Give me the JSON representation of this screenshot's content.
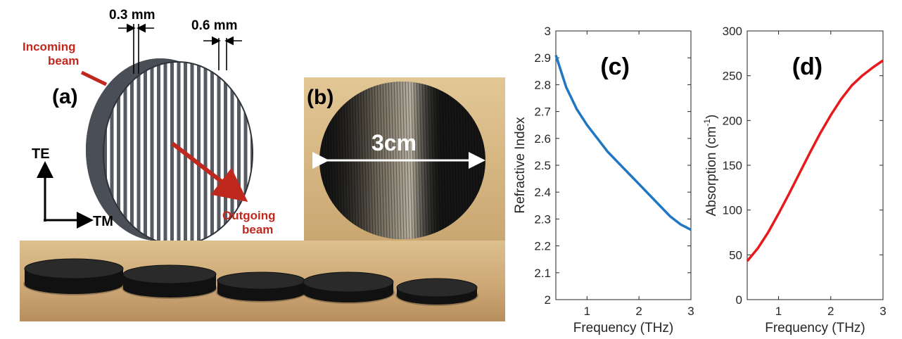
{
  "diagram": {
    "label": "(a)",
    "dim_small": "0.3 mm",
    "dim_large": "0.6 mm",
    "incoming_line1": "Incoming",
    "incoming_line2": "beam",
    "outgoing_line1": "Outgoing",
    "outgoing_line2": "beam",
    "axis_te": "TE",
    "axis_tm": "TM"
  },
  "photo": {
    "label": "(b)",
    "diameter": "3cm"
  },
  "colors": {
    "red_beam": "#c0281e",
    "disk_gray": "#4a4f57",
    "curve_c": "#1f77c4",
    "curve_d": "#e8191c"
  },
  "chart_data": [
    {
      "type": "line",
      "panel_label": "(c)",
      "title": "",
      "xlabel": "Frequency (THz)",
      "ylabel": "Refractive Index",
      "xlim": [
        0.4,
        3
      ],
      "ylim": [
        2,
        3
      ],
      "xticks": [
        "1",
        "2",
        "3"
      ],
      "yticks": [
        "2",
        "2.1",
        "2.2",
        "2.3",
        "2.4",
        "2.5",
        "2.6",
        "2.7",
        "2.8",
        "2.9",
        "3"
      ],
      "series": [
        {
          "x": [
            0.4,
            0.5,
            0.6,
            0.7,
            0.8,
            1.0,
            1.2,
            1.4,
            1.6,
            1.8,
            2.0,
            2.2,
            2.4,
            2.6,
            2.8,
            3.0
          ],
          "y": [
            2.91,
            2.85,
            2.79,
            2.75,
            2.71,
            2.65,
            2.6,
            2.55,
            2.51,
            2.47,
            2.43,
            2.39,
            2.35,
            2.31,
            2.28,
            2.26
          ]
        }
      ]
    },
    {
      "type": "line",
      "panel_label": "(d)",
      "title": "",
      "xlabel": "Frequency (THz)",
      "ylabel": "Absorption (cm",
      "ylabel_sup": "-1",
      "ylabel_end": ")",
      "xlim": [
        0.4,
        3
      ],
      "ylim": [
        0,
        300
      ],
      "xticks": [
        "1",
        "2",
        "3"
      ],
      "yticks": [
        "0",
        "50",
        "100",
        "150",
        "200",
        "250",
        "300"
      ],
      "series": [
        {
          "x": [
            0.4,
            0.6,
            0.8,
            1.0,
            1.2,
            1.4,
            1.6,
            1.8,
            2.0,
            2.2,
            2.4,
            2.6,
            2.8,
            3.0
          ],
          "y": [
            43,
            57,
            75,
            96,
            118,
            141,
            164,
            186,
            206,
            224,
            239,
            250,
            259,
            267
          ]
        }
      ]
    }
  ]
}
